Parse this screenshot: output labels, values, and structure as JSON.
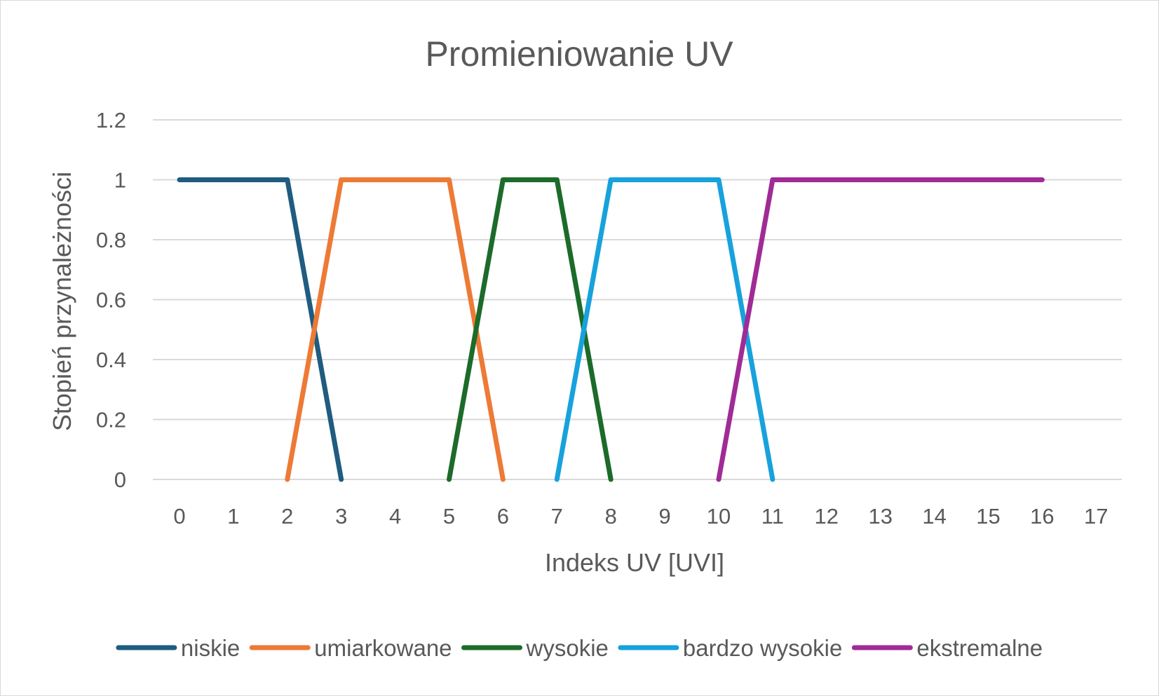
{
  "chart_data": {
    "type": "line",
    "title": "Promieniowanie UV",
    "xlabel": "Indeks UV [UVI]",
    "ylabel": "Stopień przynależności",
    "x_ticks": [
      "0",
      "1",
      "2",
      "3",
      "4",
      "5",
      "6",
      "7",
      "8",
      "9",
      "10",
      "11",
      "12",
      "13",
      "14",
      "15",
      "16",
      "17"
    ],
    "y_ticks": [
      "0",
      "0.2",
      "0.4",
      "0.6",
      "0.8",
      "1",
      "1.2"
    ],
    "xlim": [
      0,
      17
    ],
    "ylim": [
      0,
      1.2
    ],
    "grid": true,
    "legend_position": "bottom",
    "series": [
      {
        "name": "niskie",
        "color": "#1f5c80",
        "points": [
          [
            0,
            1
          ],
          [
            2,
            1
          ],
          [
            3,
            0
          ]
        ]
      },
      {
        "name": "umiarkowane",
        "color": "#ed7a35",
        "points": [
          [
            2,
            0
          ],
          [
            3,
            1
          ],
          [
            5,
            1
          ],
          [
            6,
            0
          ]
        ]
      },
      {
        "name": "wysokie",
        "color": "#1c6b2a",
        "points": [
          [
            5,
            0
          ],
          [
            6,
            1
          ],
          [
            7,
            1
          ],
          [
            8,
            0
          ]
        ]
      },
      {
        "name": "bardzo wysokie",
        "color": "#17a2dc",
        "points": [
          [
            7,
            0
          ],
          [
            8,
            1
          ],
          [
            10,
            1
          ],
          [
            11,
            0
          ]
        ]
      },
      {
        "name": "ekstremalne",
        "color": "#a02b96",
        "points": [
          [
            10,
            0
          ],
          [
            11,
            1
          ],
          [
            16,
            1
          ]
        ]
      }
    ]
  }
}
